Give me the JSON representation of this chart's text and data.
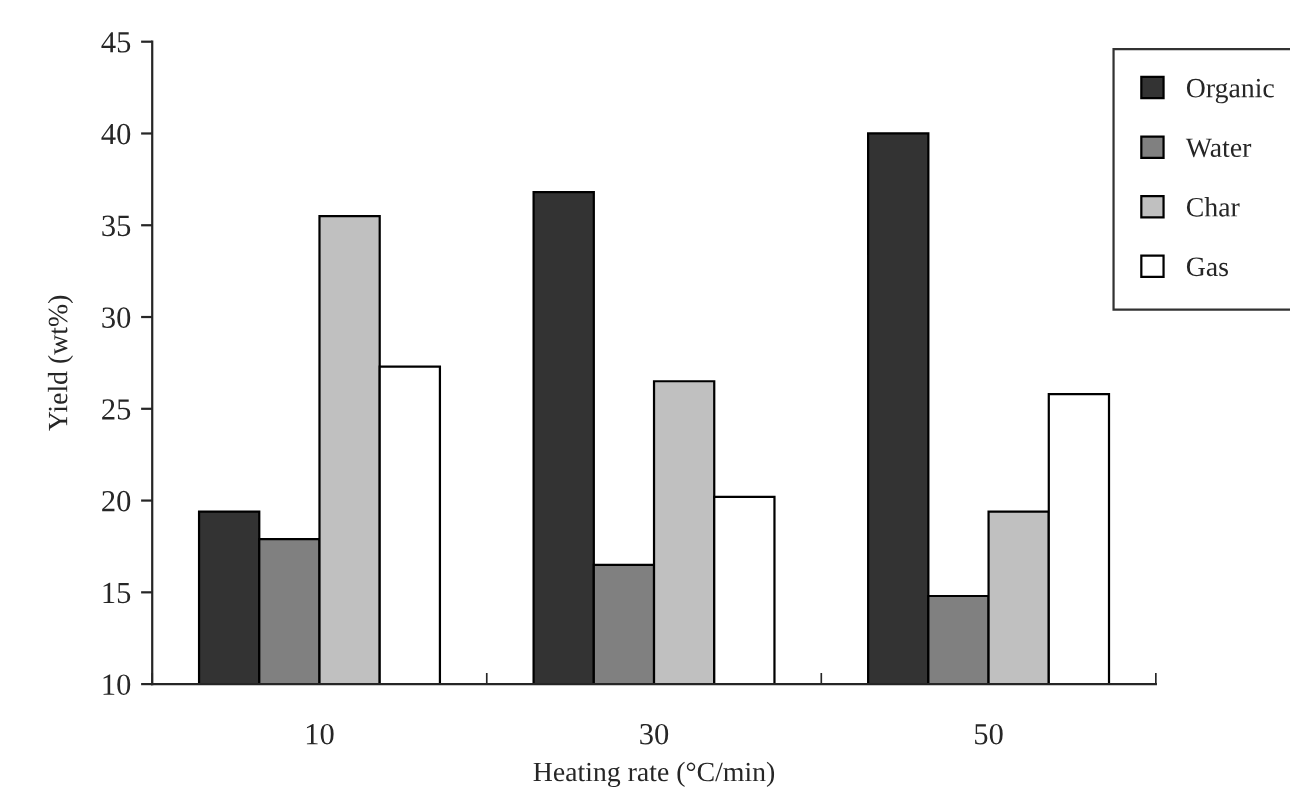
{
  "chart_data": {
    "type": "bar",
    "xlabel": "Heating rate (°C/min)",
    "ylabel": "Yield (wt%)",
    "categories": [
      "10",
      "30",
      "50"
    ],
    "series": [
      {
        "name": "Organic",
        "color": "#333333",
        "values": [
          19.4,
          36.8,
          40.0
        ]
      },
      {
        "name": "Water",
        "color": "#808080",
        "values": [
          17.9,
          16.5,
          14.8
        ]
      },
      {
        "name": "Char",
        "color": "#c0c0c0",
        "values": [
          35.5,
          26.5,
          19.4
        ]
      },
      {
        "name": "Gas",
        "color": "#ffffff",
        "values": [
          27.3,
          20.2,
          25.8
        ]
      }
    ],
    "ylim": [
      10,
      45
    ],
    "yticks": [
      10,
      15,
      20,
      25,
      30,
      35,
      40,
      45
    ],
    "grid": false,
    "legend": "top right"
  }
}
